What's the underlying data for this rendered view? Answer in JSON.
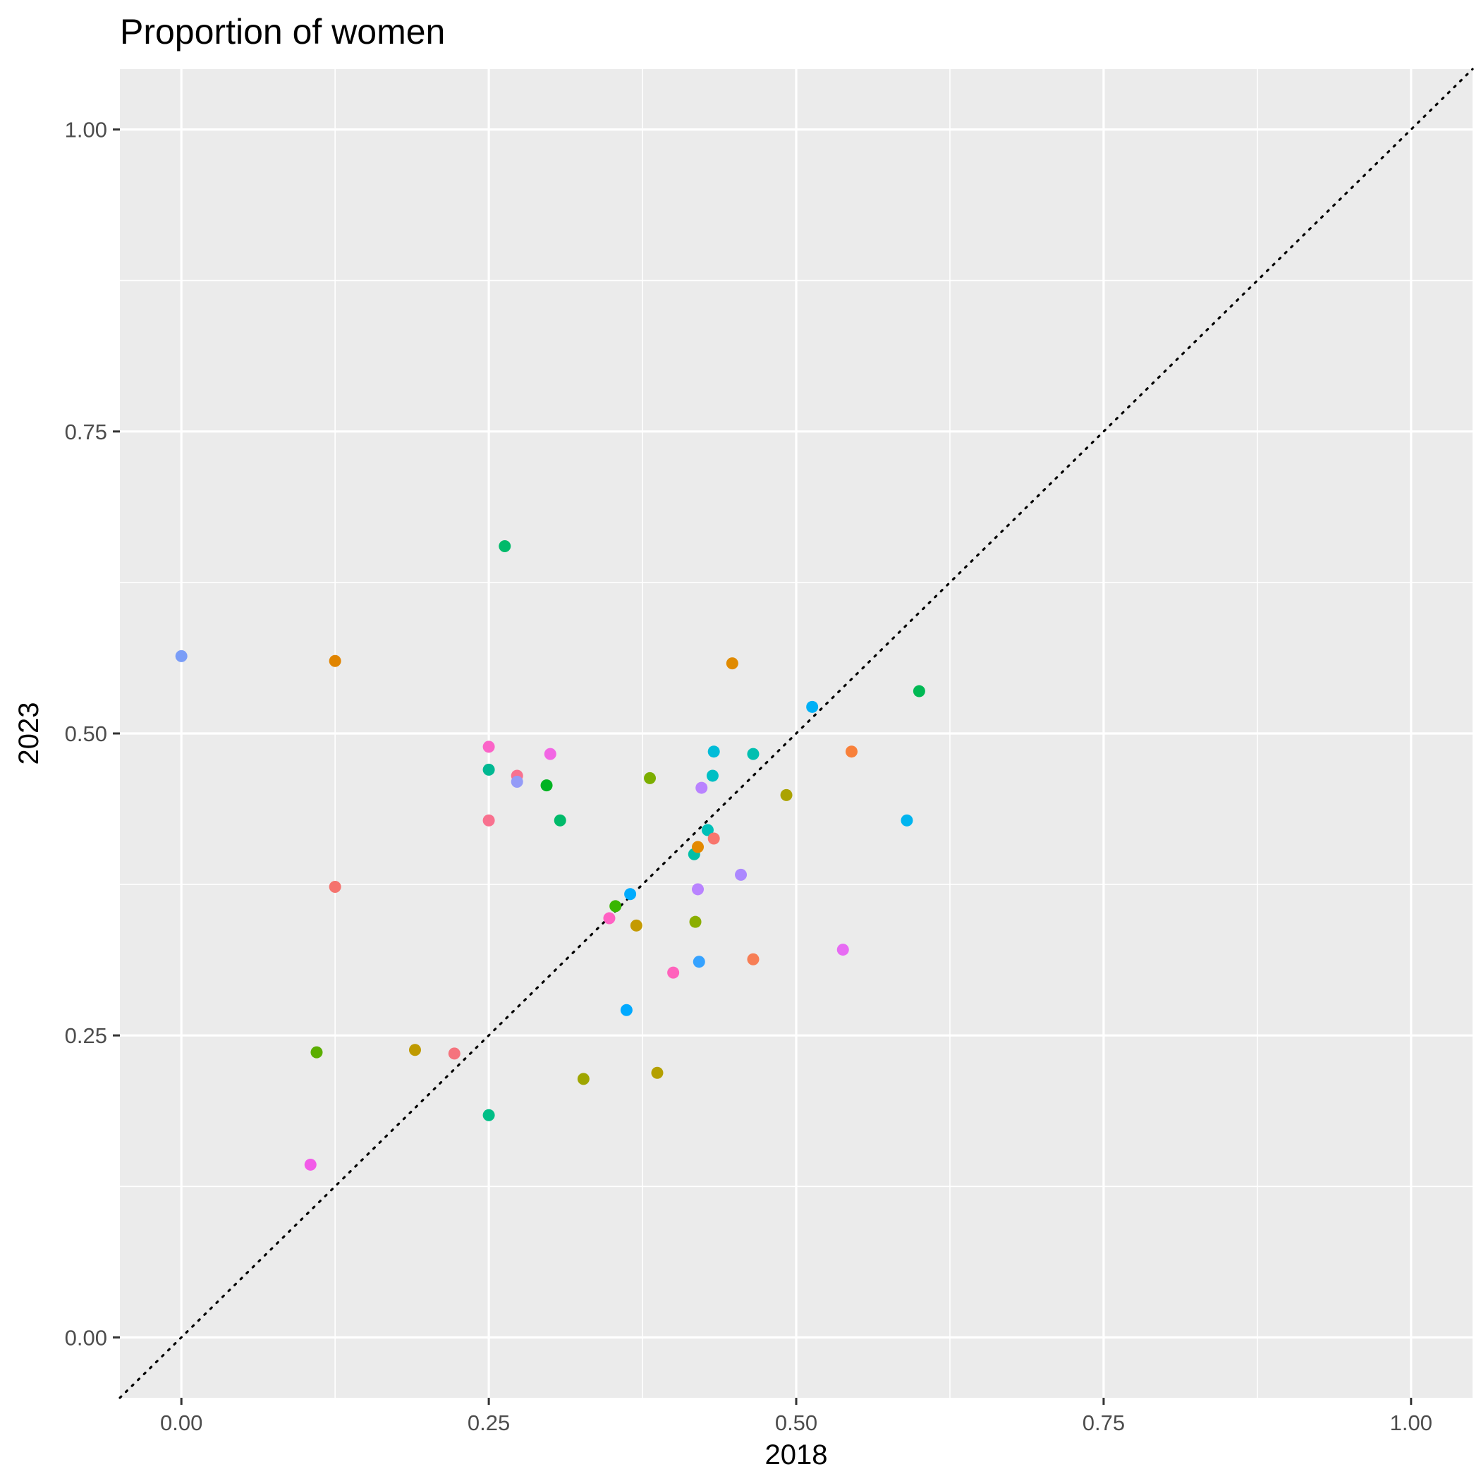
{
  "chart_data": {
    "type": "scatter",
    "title": "Proportion of women",
    "xlabel": "2018",
    "ylabel": "2023",
    "xlim": [
      -0.05,
      1.05
    ],
    "ylim": [
      -0.05,
      1.05
    ],
    "x_ticks": [
      "0.00",
      "0.25",
      "0.50",
      "0.75",
      "1.00"
    ],
    "y_ticks": [
      "0.00",
      "0.25",
      "0.50",
      "0.75",
      "1.00"
    ],
    "x_tick_values": [
      0,
      0.25,
      0.5,
      0.75,
      1
    ],
    "y_tick_values": [
      0,
      0.25,
      0.5,
      0.75,
      1
    ],
    "grid": true,
    "legend": "none",
    "reference_line": {
      "type": "identity",
      "style": "dotted",
      "color": "#000000"
    },
    "colors": {
      "panel_background": "#EBEBEB",
      "grid": "#FFFFFF",
      "tick": "#333333"
    },
    "points": [
      {
        "x": 0.0,
        "y": 0.564,
        "color": "#7A9DF7"
      },
      {
        "x": 0.125,
        "y": 0.56,
        "color": "#E08400"
      },
      {
        "x": 0.125,
        "y": 0.373,
        "color": "#F5736E"
      },
      {
        "x": 0.11,
        "y": 0.236,
        "color": "#5BAE00"
      },
      {
        "x": 0.105,
        "y": 0.143,
        "color": "#F25BE8"
      },
      {
        "x": 0.19,
        "y": 0.238,
        "color": "#BF9A00"
      },
      {
        "x": 0.222,
        "y": 0.235,
        "color": "#F5737D"
      },
      {
        "x": 0.25,
        "y": 0.489,
        "color": "#FB64C8"
      },
      {
        "x": 0.25,
        "y": 0.47,
        "color": "#00B892"
      },
      {
        "x": 0.25,
        "y": 0.428,
        "color": "#F8718F"
      },
      {
        "x": 0.25,
        "y": 0.184,
        "color": "#00BE86"
      },
      {
        "x": 0.263,
        "y": 0.655,
        "color": "#00BA6A"
      },
      {
        "x": 0.273,
        "y": 0.465,
        "color": "#F8718F"
      },
      {
        "x": 0.273,
        "y": 0.46,
        "color": "#949BF7"
      },
      {
        "x": 0.297,
        "y": 0.457,
        "color": "#00B322"
      },
      {
        "x": 0.3,
        "y": 0.483,
        "color": "#F266E4"
      },
      {
        "x": 0.308,
        "y": 0.428,
        "color": "#00BA6A"
      },
      {
        "x": 0.327,
        "y": 0.214,
        "color": "#9FA600"
      },
      {
        "x": 0.348,
        "y": 0.347,
        "color": "#FF61C3"
      },
      {
        "x": 0.353,
        "y": 0.357,
        "color": "#39B600"
      },
      {
        "x": 0.362,
        "y": 0.271,
        "color": "#00A9FF"
      },
      {
        "x": 0.365,
        "y": 0.367,
        "color": "#00ABFD"
      },
      {
        "x": 0.37,
        "y": 0.341,
        "color": "#C49A00"
      },
      {
        "x": 0.381,
        "y": 0.463,
        "color": "#7CAE00"
      },
      {
        "x": 0.387,
        "y": 0.219,
        "color": "#B4A000"
      },
      {
        "x": 0.4,
        "y": 0.302,
        "color": "#FF62BC"
      },
      {
        "x": 0.417,
        "y": 0.4,
        "color": "#00BFA7"
      },
      {
        "x": 0.418,
        "y": 0.344,
        "color": "#8BAE00"
      },
      {
        "x": 0.42,
        "y": 0.406,
        "color": "#E38900"
      },
      {
        "x": 0.42,
        "y": 0.371,
        "color": "#B983FF"
      },
      {
        "x": 0.421,
        "y": 0.311,
        "color": "#35A2FF"
      },
      {
        "x": 0.423,
        "y": 0.455,
        "color": "#B983FF"
      },
      {
        "x": 0.428,
        "y": 0.42,
        "color": "#00C0B8"
      },
      {
        "x": 0.432,
        "y": 0.465,
        "color": "#00BFC4"
      },
      {
        "x": 0.433,
        "y": 0.413,
        "color": "#F8766D"
      },
      {
        "x": 0.433,
        "y": 0.485,
        "color": "#00BCD8"
      },
      {
        "x": 0.448,
        "y": 0.558,
        "color": "#E08A00"
      },
      {
        "x": 0.455,
        "y": 0.383,
        "color": "#AC88FF"
      },
      {
        "x": 0.465,
        "y": 0.483,
        "color": "#00BFB0"
      },
      {
        "x": 0.465,
        "y": 0.313,
        "color": "#F77E55"
      },
      {
        "x": 0.492,
        "y": 0.449,
        "color": "#ABA300"
      },
      {
        "x": 0.513,
        "y": 0.522,
        "color": "#00B0F6"
      },
      {
        "x": 0.538,
        "y": 0.321,
        "color": "#E76BF3"
      },
      {
        "x": 0.545,
        "y": 0.485,
        "color": "#F8803A"
      },
      {
        "x": 0.59,
        "y": 0.428,
        "color": "#00B4EF"
      },
      {
        "x": 0.6,
        "y": 0.535,
        "color": "#00B954"
      }
    ]
  }
}
